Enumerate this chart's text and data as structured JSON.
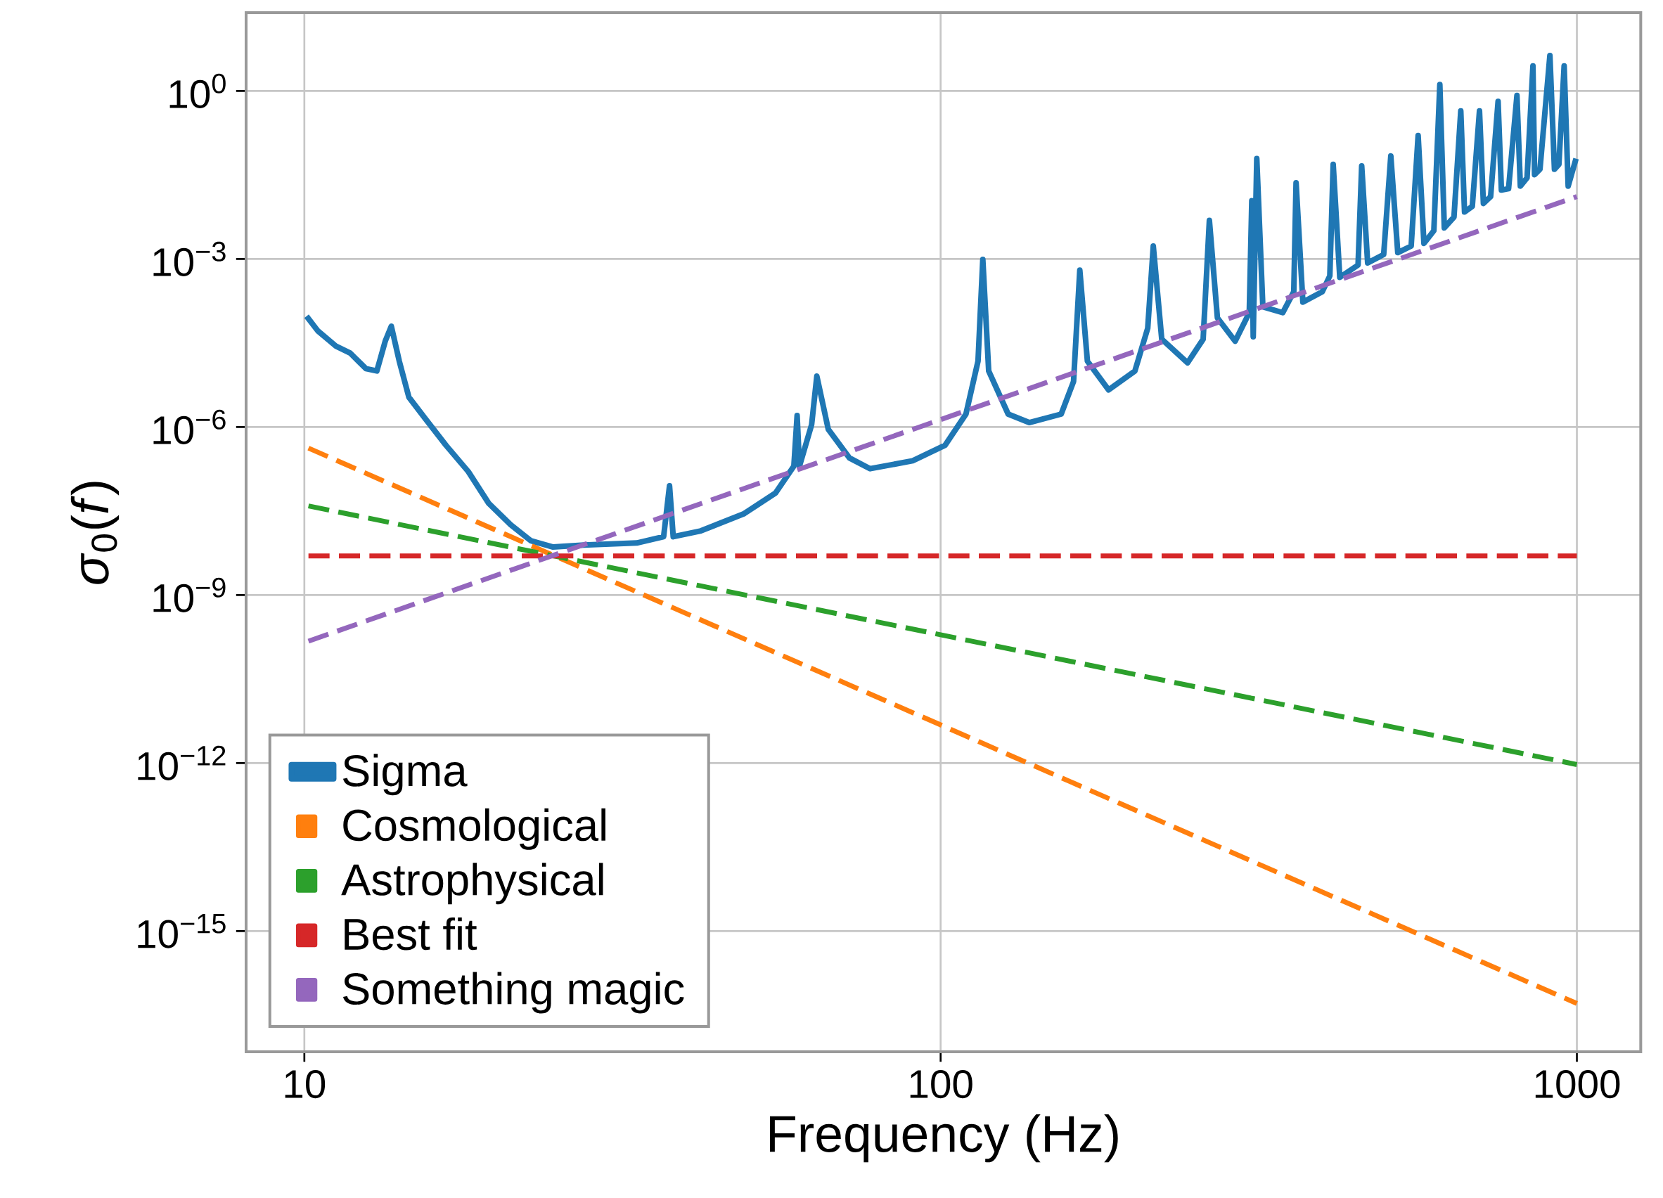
{
  "chart_data": {
    "type": "line",
    "xlabel": "Frequency (Hz)",
    "ylabel": "*σ*$_{0}$(*f*)",
    "log": "xy",
    "grid": true,
    "legend": "bottom left",
    "xlim": [
      8.1,
      1260
    ],
    "ylim": [
      7e-18,
      25
    ],
    "xticks": [
      10,
      100,
      1000
    ],
    "yticks": [
      {
        "value": 1e-15,
        "label": "10$^{−15}$"
      },
      {
        "value": 1e-12,
        "label": "10$^{−12}$"
      },
      {
        "value": 1e-09,
        "label": "10$^{−9}$"
      },
      {
        "value": 1e-06,
        "label": "10$^{−6}$"
      },
      {
        "value": 0.001,
        "label": "10$^{−3}$"
      },
      {
        "value": 1,
        "label": "10$^{0}$"
      }
    ],
    "series": [
      {
        "name": "Sigma",
        "color": "#1f77b4",
        "line_style": "solid",
        "x": [
          10.08,
          10.5,
          11.2,
          11.8,
          12.5,
          13.0,
          13.4,
          13.7,
          14.1,
          14.6,
          15.5,
          16.7,
          18.1,
          19.5,
          21.1,
          22.7,
          24.6,
          27.5,
          33.3,
          36.7,
          37.5,
          38.0,
          42.0,
          49.0,
          55.0,
          58.8,
          59.5,
          60.0,
          62.7,
          63.9,
          66.6,
          71.9,
          77.5,
          90.4,
          101.6,
          109.6,
          114.5,
          116.5,
          119.0,
          127.7,
          137.8,
          154.7,
          161.8,
          165.5,
          170.1,
          183.7,
          202.0,
          211.6,
          215.9,
          222.6,
          244.4,
          258.6,
          264.5,
          272.3,
          290.4,
          305.6,
          308.4,
          310,
          314,
          321,
          345,
          359,
          362,
          371,
          398,
          409,
          414,
          424,
          453,
          459,
          469,
          497,
          510,
          523,
          549,
          563,
          575,
          596,
          609,
          619,
          641,
          657,
          666,
          685,
          703,
          713,
          732,
          752,
          761,
          781,
          805,
          815,
          835,
          853,
          858,
          875,
          907,
          922,
          937,
          955,
          969,
          997
        ],
        "values": [
          9.5e-05,
          5.2e-05,
          2.8e-05,
          2.1e-05,
          1.1e-05,
          1e-05,
          3.4e-05,
          6.3e-05,
          1.5e-05,
          3.4e-06,
          1.4e-06,
          4.7e-07,
          1.6e-07,
          4.3e-08,
          1.8e-08,
          9.3e-09,
          7.2e-09,
          7.8e-09,
          8.5e-09,
          1.1e-08,
          8.9e-08,
          1.1e-08,
          1.4e-08,
          2.8e-08,
          6.6e-08,
          2e-07,
          1.6e-06,
          2e-07,
          1.1e-06,
          8.1e-06,
          9.1e-07,
          2.8e-07,
          1.8e-07,
          2.5e-07,
          4.7e-07,
          1.7e-06,
          1.5e-05,
          0.00098,
          1e-05,
          1.7e-06,
          1.2e-06,
          1.7e-06,
          6.5e-06,
          0.00063,
          1.5e-05,
          4.6e-06,
          1e-05,
          5.8e-05,
          0.0017,
          3.7e-05,
          1.4e-05,
          3.7e-05,
          0.0049,
          8.9e-05,
          3.4e-05,
          0.00011,
          0.011,
          4.1e-05,
          0.062,
          0.00014,
          0.00011,
          0.00026,
          0.023,
          0.00017,
          0.00026,
          0.0005,
          0.049,
          0.00047,
          0.00078,
          0.046,
          0.00085,
          0.0012,
          0.069,
          0.0013,
          0.0017,
          0.16,
          0.0019,
          0.0032,
          1.3,
          0.0036,
          0.0056,
          0.44,
          0.0069,
          0.0087,
          0.44,
          0.0098,
          0.013,
          0.65,
          0.017,
          0.018,
          0.83,
          0.02,
          0.028,
          2.8,
          0.032,
          0.04,
          4.3,
          0.04,
          0.049,
          2.8,
          0.02,
          0.062
        ]
      },
      {
        "name": "Cosmological",
        "color": "#ff7f0e",
        "line_style": "dashed",
        "x": [
          10.15,
          1000
        ],
        "values": [
          4.2e-07,
          5.1e-17
        ]
      },
      {
        "name": "Astrophysical",
        "color": "#2ca02c",
        "line_style": "dashed",
        "x": [
          10.15,
          1000
        ],
        "values": [
          3.9e-08,
          9.4e-13
        ]
      },
      {
        "name": "Best fit",
        "color": "#d62728",
        "line_style": "dashed",
        "x": [
          10.15,
          1000
        ],
        "values": [
          5e-09,
          5e-09
        ]
      },
      {
        "name": "Something magic",
        "color": "#9467bd",
        "line_style": "dashed",
        "x": [
          10.15,
          1000
        ],
        "values": [
          1.5e-10,
          0.013
        ]
      }
    ]
  }
}
